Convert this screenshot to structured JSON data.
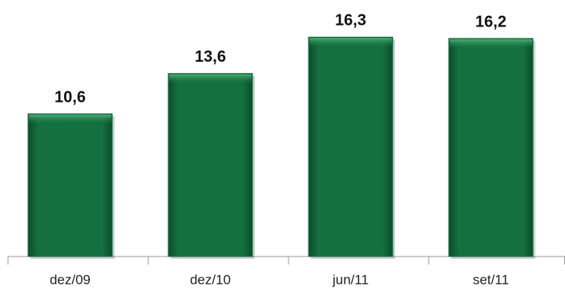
{
  "chart_data": {
    "type": "bar",
    "categories": [
      "dez/09",
      "dez/10",
      "jun/11",
      "set/11"
    ],
    "values": [
      10.6,
      13.6,
      16.3,
      16.2
    ],
    "value_labels": [
      "10,6",
      "13,6",
      "16,3",
      "16,2"
    ],
    "color": "#157040",
    "ylim": [
      0,
      19
    ]
  }
}
